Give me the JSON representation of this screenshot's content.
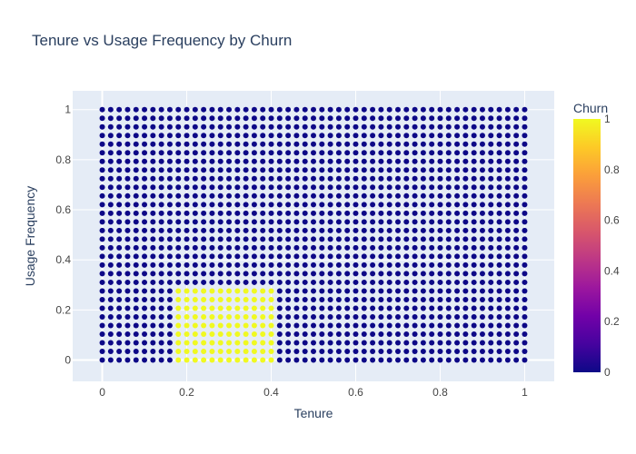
{
  "chart_data": {
    "type": "scatter",
    "title": "Tenure vs Usage Frequency by Churn",
    "xlabel": "Tenure",
    "ylabel": "Usage Frequency",
    "xlim": [
      -0.07,
      1.07
    ],
    "ylim": [
      -0.085,
      1.075
    ],
    "xticks": [
      0,
      0.2,
      0.4,
      0.6,
      0.8,
      1
    ],
    "xtick_labels": [
      "0",
      "0.2",
      "0.4",
      "0.6",
      "0.8",
      "1"
    ],
    "yticks": [
      0,
      0.2,
      0.4,
      0.6,
      0.8,
      1
    ],
    "ytick_labels": [
      "0",
      "0.2",
      "0.4",
      "0.6",
      "0.8",
      "1"
    ],
    "grid": true,
    "grid_description": "Uniform grid of points: x from 0 to 1 in steps of 0.02, y from 0 to 1 in steps of 1/29. Churn = 1 where 0.18 <= x <= 0.40 and y <= 0.28, otherwise 0.",
    "point_grid": {
      "x_start": 0,
      "x_end": 1,
      "x_count": 51,
      "y_start": 0,
      "y_end": 1,
      "y_count": 30
    },
    "churn_region": {
      "x_min": 0.18,
      "x_max": 0.4,
      "y_max": 0.28,
      "value": 1
    },
    "default_value": 0,
    "colorbar": {
      "title": "Churn",
      "range": [
        0,
        1
      ],
      "ticks": [
        0,
        0.2,
        0.4,
        0.6,
        0.8,
        1
      ],
      "tick_labels": [
        "0",
        "0.2",
        "0.4",
        "0.6",
        "0.8",
        "1"
      ],
      "colorscale": [
        "#0d0887",
        "#46039f",
        "#7201a8",
        "#9c179e",
        "#bd3786",
        "#d8576b",
        "#ed7953",
        "#fb9f3a",
        "#fdca26",
        "#f0f921"
      ]
    },
    "colors": {
      "plot_bg": "#e5ecf6",
      "gridline": "#ffffff",
      "text": "#2a3f5f",
      "tick_text": "#444444"
    }
  }
}
